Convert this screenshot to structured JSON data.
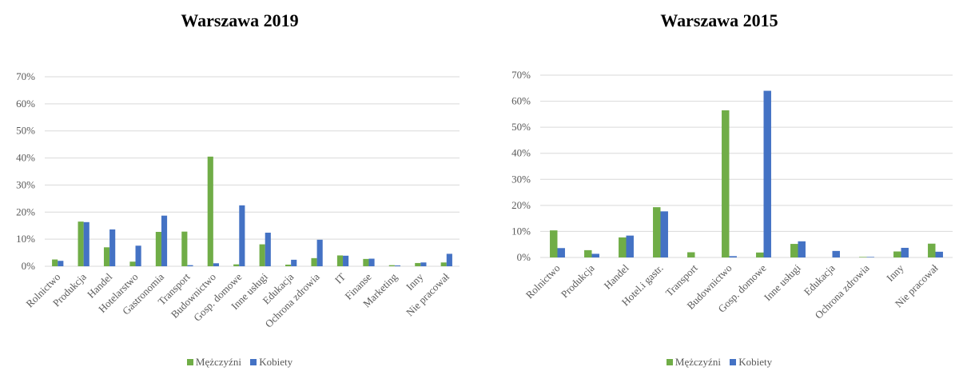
{
  "colors": {
    "men": "#70ad47",
    "women": "#4472c4",
    "grid": "#d9d9d9"
  },
  "legend": {
    "men": "Mężczyźni",
    "women": "Kobiety"
  },
  "chart_data": [
    {
      "type": "bar",
      "title": "Warszawa 2019",
      "xlabel": "",
      "ylabel": "",
      "ylim": [
        0,
        0.7
      ],
      "yticks": [
        "0%",
        "10%",
        "20%",
        "30%",
        "40%",
        "50%",
        "60%",
        "70%"
      ],
      "grid": true,
      "legend_position": "bottom",
      "categories": [
        "Rolnictwo",
        "Produkcja",
        "Handel",
        "Hotelarstwo",
        "Gastronomia",
        "Transport",
        "Budownictwo",
        "Gosp. domowe",
        "Inne usługi",
        "Edukacja",
        "Ochrona zdrowia",
        "IT",
        "Finanse",
        "Marketing",
        "Inny",
        "Nie pracował"
      ],
      "series": [
        {
          "name": "Mężczyźni",
          "values": [
            0.025,
            0.165,
            0.07,
            0.017,
            0.127,
            0.128,
            0.405,
            0.007,
            0.081,
            0.006,
            0.03,
            0.04,
            0.027,
            0.004,
            0.012,
            0.014
          ]
        },
        {
          "name": "Kobiety",
          "values": [
            0.02,
            0.163,
            0.136,
            0.076,
            0.187,
            0.004,
            0.011,
            0.225,
            0.124,
            0.024,
            0.098,
            0.039,
            0.028,
            0.003,
            0.014,
            0.046
          ]
        }
      ]
    },
    {
      "type": "bar",
      "title": "Warszawa 2015",
      "xlabel": "",
      "ylabel": "",
      "ylim": [
        0,
        0.7
      ],
      "yticks": [
        "0%",
        "10%",
        "20%",
        "30%",
        "40%",
        "50%",
        "60%",
        "70%"
      ],
      "grid": true,
      "legend_position": "bottom",
      "categories": [
        "Rolnictwo",
        "Produkcja",
        "Handel",
        "Hotel.i gastr.",
        "Transport",
        "Budownictwo",
        "Gosp. domowe",
        "Inne usługi",
        "Edukacja",
        "Ochrona zdrowia",
        "Inny",
        "Nie pracował"
      ],
      "series": [
        {
          "name": "Mężczyźni",
          "values": [
            0.104,
            0.028,
            0.077,
            0.193,
            0.02,
            0.565,
            0.019,
            0.052,
            0.0,
            0.002,
            0.023,
            0.053
          ]
        },
        {
          "name": "Kobiety",
          "values": [
            0.036,
            0.014,
            0.084,
            0.177,
            0.0,
            0.005,
            0.64,
            0.062,
            0.025,
            0.002,
            0.037,
            0.022
          ]
        }
      ]
    }
  ]
}
